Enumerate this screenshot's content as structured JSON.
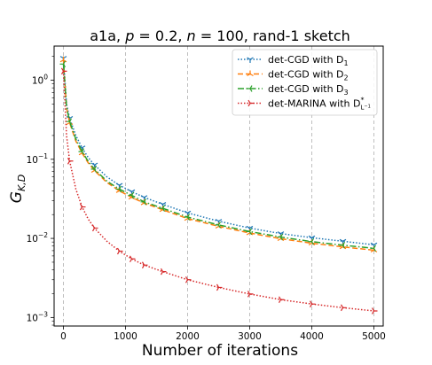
{
  "chart_data": {
    "type": "line",
    "title_text": "a1a, ",
    "title_math": [
      {
        "t": "p",
        "italic": true
      },
      {
        "t": " = 0.2, "
      },
      {
        "t": "n",
        "italic": true
      },
      {
        "t": " = 100, rand-1 sketch"
      }
    ],
    "xlabel": "Number of iterations",
    "ylabel": "G",
    "ylabel_sub": "K,D",
    "xlim": [
      -150,
      5150
    ],
    "xticks": [
      0,
      1000,
      2000,
      3000,
      4000,
      5000
    ],
    "yscale": "log",
    "ylim": [
      0.00078,
      2.7
    ],
    "yticks": [
      0.001,
      0.01,
      0.1,
      1
    ],
    "ytick_labels": [
      {
        "base": "10",
        "exp": "−3"
      },
      {
        "base": "10",
        "exp": "−2"
      },
      {
        "base": "10",
        "exp": "−1"
      },
      {
        "base": "10",
        "exp": "0"
      }
    ],
    "grid": "vertical-dashed",
    "legend_position": "top-right",
    "series": [
      {
        "name": "det-CGD with D",
        "name_sub": "1",
        "color": "#1f77b4",
        "linestyle": "dotted",
        "marker": "tri_down",
        "x": [
          0,
          50,
          100,
          200,
          300,
          400,
          500,
          700,
          900,
          1100,
          1300,
          1600,
          2000,
          2500,
          3000,
          3500,
          4000,
          4500,
          5000
        ],
        "y": [
          1.9,
          0.5,
          0.33,
          0.2,
          0.14,
          0.105,
          0.085,
          0.06,
          0.047,
          0.039,
          0.033,
          0.027,
          0.021,
          0.0165,
          0.0135,
          0.0115,
          0.0102,
          0.0092,
          0.0083
        ]
      },
      {
        "name": "det-CGD with D",
        "name_sub": "2",
        "color": "#ff7f0e",
        "linestyle": "dashed",
        "marker": "tri_up",
        "x": [
          0,
          50,
          100,
          200,
          300,
          400,
          500,
          700,
          900,
          1100,
          1300,
          1600,
          2000,
          2500,
          3000,
          3500,
          4000,
          4500,
          5000
        ],
        "y": [
          1.8,
          0.45,
          0.29,
          0.17,
          0.12,
          0.09,
          0.072,
          0.051,
          0.04,
          0.033,
          0.028,
          0.023,
          0.0178,
          0.0142,
          0.0117,
          0.0099,
          0.0087,
          0.0078,
          0.0071
        ]
      },
      {
        "name": "det-CGD with D",
        "name_sub": "3",
        "color": "#2ca02c",
        "linestyle": "dashdot",
        "marker": "tri_left",
        "x": [
          0,
          50,
          100,
          200,
          300,
          400,
          500,
          700,
          900,
          1100,
          1300,
          1600,
          2000,
          2500,
          3000,
          3500,
          4000,
          4500,
          5000
        ],
        "y": [
          1.6,
          0.46,
          0.3,
          0.18,
          0.125,
          0.094,
          0.075,
          0.053,
          0.042,
          0.035,
          0.029,
          0.024,
          0.0186,
          0.0148,
          0.0122,
          0.0104,
          0.0091,
          0.0082,
          0.0075
        ]
      },
      {
        "name": "det-MARINA with D",
        "name_sub": "L",
        "name_sup": "*",
        "name_subsup": "−1",
        "color": "#d62728",
        "linestyle": "dotted",
        "marker": "tri_right",
        "x": [
          0,
          50,
          100,
          200,
          300,
          400,
          500,
          700,
          900,
          1100,
          1300,
          1600,
          2000,
          2500,
          3000,
          3500,
          4000,
          4500,
          5000
        ],
        "y": [
          1.3,
          0.2,
          0.095,
          0.042,
          0.025,
          0.0175,
          0.0135,
          0.0092,
          0.0069,
          0.0055,
          0.0046,
          0.0038,
          0.003,
          0.0024,
          0.00198,
          0.00168,
          0.00148,
          0.00133,
          0.00121
        ]
      }
    ]
  }
}
